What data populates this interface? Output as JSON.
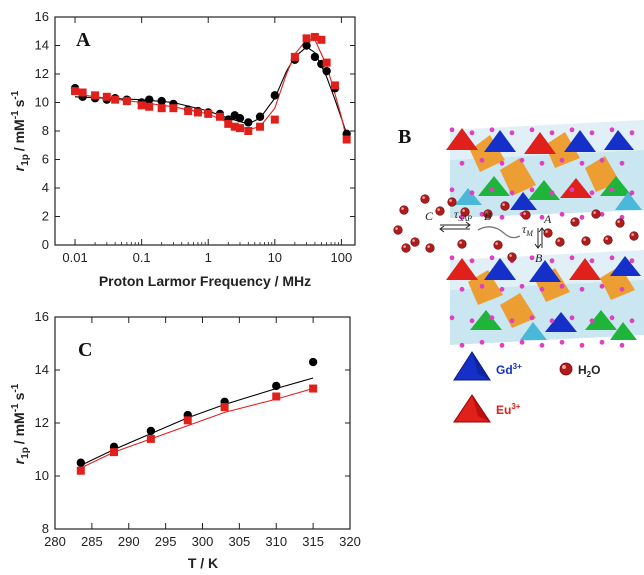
{
  "chart_data": [
    {
      "type": "scatter",
      "panel": "A",
      "xscale": "log",
      "xlim": [
        0.005,
        160
      ],
      "ylim": [
        0,
        16
      ],
      "xlabel": "Proton Larmor Frequency / MHz",
      "ylabel_main": "r",
      "ylabel_sub": "1p",
      "ylabel_units": "/ mM",
      "ylabel_exp": "-1",
      "ylabel_s": "s",
      "ylabel_s_exp": "-1",
      "xticks": [
        0.01,
        0.1,
        1,
        10,
        100
      ],
      "xtick_labels": [
        "0.01",
        "0.1",
        "1",
        "10",
        "100"
      ],
      "yticks": [
        0,
        2,
        4,
        6,
        8,
        10,
        12,
        14,
        16
      ],
      "series": [
        {
          "marker": "circle",
          "color": "#000000",
          "x": [
            0.01,
            0.013,
            0.02,
            0.03,
            0.04,
            0.06,
            0.1,
            0.13,
            0.2,
            0.3,
            0.5,
            0.7,
            1.0,
            1.5,
            2.0,
            2.5,
            3.0,
            4.0,
            6.0,
            10,
            20,
            30,
            40,
            50,
            60,
            80,
            120
          ],
          "y": [
            11.0,
            10.4,
            10.3,
            10.2,
            10.3,
            10.2,
            10.0,
            10.2,
            10.1,
            9.9,
            9.5,
            9.4,
            9.3,
            9.2,
            8.8,
            9.1,
            8.9,
            8.6,
            9.0,
            10.5,
            13.0,
            14.0,
            13.2,
            12.7,
            12.2,
            11.0,
            7.8
          ]
        },
        {
          "marker": "square",
          "color": "#e0201b",
          "x": [
            0.01,
            0.013,
            0.02,
            0.03,
            0.04,
            0.06,
            0.1,
            0.13,
            0.2,
            0.3,
            0.5,
            0.7,
            1.0,
            1.5,
            2.0,
            2.5,
            3.0,
            4.0,
            6.0,
            10,
            20,
            30,
            40,
            50,
            60,
            80,
            120
          ],
          "y": [
            10.8,
            10.7,
            10.5,
            10.4,
            10.2,
            10.1,
            9.8,
            9.7,
            9.6,
            9.6,
            9.4,
            9.3,
            9.2,
            9.0,
            8.5,
            8.3,
            8.2,
            8.0,
            8.3,
            8.8,
            13.2,
            14.5,
            14.6,
            14.4,
            12.8,
            11.2,
            7.4
          ]
        }
      ],
      "fit_curves": [
        {
          "color": "#000000",
          "x": [
            0.01,
            0.03,
            0.1,
            0.3,
            1,
            2,
            4,
            6,
            10,
            15,
            20,
            30,
            40,
            60,
            80,
            100,
            120
          ],
          "y": [
            10.4,
            10.3,
            10.2,
            10.0,
            9.4,
            8.9,
            8.5,
            8.9,
            10.3,
            12.2,
            13.2,
            13.9,
            13.5,
            11.8,
            10.2,
            8.9,
            7.8
          ]
        },
        {
          "color": "#e0201b",
          "x": [
            0.01,
            0.03,
            0.1,
            0.3,
            1,
            2,
            4,
            6,
            10,
            15,
            20,
            30,
            40,
            60,
            80,
            100,
            120
          ],
          "y": [
            10.6,
            10.3,
            10.0,
            9.7,
            9.2,
            8.6,
            8.1,
            8.3,
            9.6,
            12.0,
            13.4,
            14.4,
            14.4,
            12.6,
            10.6,
            9.0,
            7.4
          ]
        }
      ]
    },
    {
      "type": "scatter",
      "panel": "C",
      "xlim": [
        280,
        320
      ],
      "ylim": [
        8,
        16
      ],
      "xlabel": "T / K",
      "ylabel_main": "r",
      "ylabel_sub": "1p",
      "ylabel_units": "/ mM",
      "ylabel_exp": "-1",
      "ylabel_s": "s",
      "ylabel_s_exp": "-1",
      "xticks": [
        280,
        285,
        290,
        295,
        300,
        305,
        310,
        315,
        320
      ],
      "yticks": [
        8,
        10,
        12,
        14,
        16
      ],
      "series": [
        {
          "marker": "circle",
          "color": "#000000",
          "x": [
            283.5,
            288,
            293,
            298,
            303,
            310,
            315
          ],
          "y": [
            10.5,
            11.1,
            11.7,
            12.3,
            12.8,
            13.4,
            14.3
          ]
        },
        {
          "marker": "square",
          "color": "#e0201b",
          "x": [
            283.5,
            288,
            293,
            298,
            303,
            310,
            315
          ],
          "y": [
            10.2,
            10.9,
            11.4,
            12.1,
            12.6,
            13.0,
            13.3
          ]
        }
      ],
      "fit_curves": [
        {
          "color": "#000000",
          "x": [
            283.5,
            288,
            293,
            298,
            303,
            310,
            315
          ],
          "y": [
            10.4,
            11.0,
            11.6,
            12.2,
            12.7,
            13.3,
            13.7
          ]
        },
        {
          "color": "#e0201b",
          "x": [
            283.5,
            288,
            293,
            298,
            303,
            310,
            315
          ],
          "y": [
            10.3,
            10.9,
            11.4,
            11.9,
            12.4,
            12.9,
            13.3
          ]
        }
      ]
    }
  ],
  "panel_b": {
    "label": "B",
    "label_c": "C",
    "label_b": "B",
    "label_a": "A",
    "tau_sap": "τ",
    "tau_sap_sub": "SAP",
    "tau_m": "τ",
    "tau_m_sub": "M",
    "legend_gd": "Gd",
    "legend_gd_sup": "3+",
    "legend_eu": "Eu",
    "legend_eu_sup": "3+",
    "legend_h2o": "H",
    "legend_h2o_sub": "2",
    "legend_h2o_end": "O",
    "colors": {
      "gd": "#1530c8",
      "eu": "#e0201b",
      "water": "#b01c1c",
      "orange": "#f0961e",
      "cyan": "#4ab8d8",
      "green": "#1fb43a",
      "pink": "#e040c0"
    }
  }
}
